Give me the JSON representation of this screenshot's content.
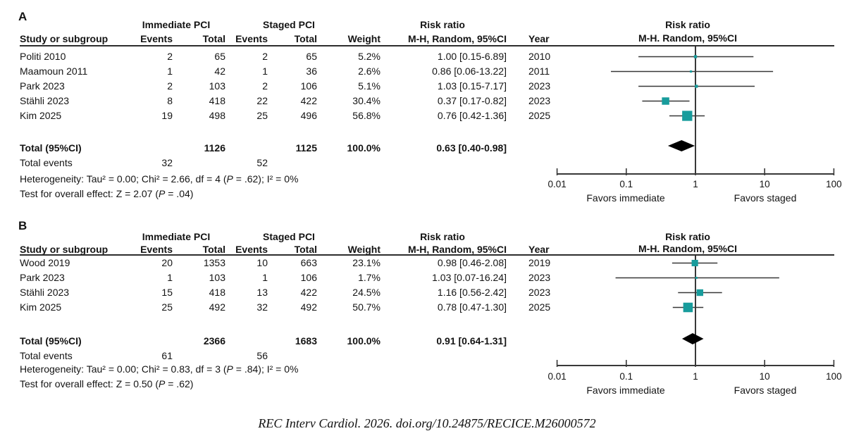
{
  "figure": {
    "footer_citation": "REC Interv Cardiol. 2026. doi.org/10.24875/RECICE.M26000572"
  },
  "colors": {
    "marker": "#189c9c",
    "ci_line": "#383838",
    "diamond": "#000000",
    "rule": "#2d2d2d"
  },
  "panels": [
    {
      "label": "A",
      "group_headers": {
        "immediate": "Immediate PCI",
        "staged": "Staged PCI",
        "risk_ratio": "Risk ratio"
      },
      "col_headers": {
        "study": "Study or subgroup",
        "events1": "Events",
        "total1": "Total",
        "events2": "Events",
        "total2": "Total",
        "weight": "Weight",
        "mh": "M-H, Random, 95%CI",
        "year": "Year"
      },
      "plot_title": {
        "line1": "Risk ratio",
        "line2": "M-H. Random, 95%CI"
      },
      "rows": [
        {
          "study": "Politi 2010",
          "events1": "2",
          "total1": "65",
          "events2": "2",
          "total2": "65",
          "weight": "5.2%",
          "rr_text": "1.00 [0.15-6.89]",
          "year": "2010"
        },
        {
          "study": "Maamoun 2011",
          "events1": "1",
          "total1": "42",
          "events2": "1",
          "total2": "36",
          "weight": "2.6%",
          "rr_text": "0.86 [0.06-13.22]",
          "year": "2011"
        },
        {
          "study": "Park 2023",
          "events1": "2",
          "total1": "103",
          "events2": "2",
          "total2": "106",
          "weight": "5.1%",
          "rr_text": "1.03 [0.15-7.17]",
          "year": "2023"
        },
        {
          "study": "Stähli 2023",
          "events1": "8",
          "total1": "418",
          "events2": "22",
          "total2": "422",
          "weight": "30.4%",
          "rr_text": "0.37 [0.17-0.82]",
          "year": "2023"
        },
        {
          "study": "Kim 2025",
          "events1": "19",
          "total1": "498",
          "events2": "25",
          "total2": "496",
          "weight": "56.8%",
          "rr_text": "0.76 [0.42-1.36]",
          "year": "2025"
        }
      ],
      "total_row": {
        "label": "Total (95%CI)",
        "total1": "1126",
        "total2": "1125",
        "weight": "100.0%",
        "rr_text": "0.63 [0.40-0.98]"
      },
      "total_events": {
        "label": "Total events",
        "events1": "32",
        "events2": "52"
      },
      "heterogeneity": "Heterogeneity: Tau² = 0.00; Chi² = 2.66, df = 4 (P = .62); I² = 0%",
      "overall_test": "Test for overall effect: Z = 2.07 (P = .04)",
      "axis": {
        "ticks": [
          "0.01",
          "0.1",
          "1",
          "10",
          "100"
        ],
        "favors_left": "Favors immediate",
        "favors_right": "Favors staged"
      }
    },
    {
      "label": "B",
      "group_headers": {
        "immediate": "Immediate PCI",
        "staged": "Staged PCI",
        "risk_ratio": "Risk ratio"
      },
      "col_headers": {
        "study": "Study or subgroup",
        "events1": "Events",
        "total1": "Total",
        "events2": "Events",
        "total2": "Total",
        "weight": "Weight",
        "mh": "M-H, Random, 95%CI",
        "year": "Year"
      },
      "plot_title": {
        "line1": "Risk ratio",
        "line2": "M-H. Random, 95%CI"
      },
      "rows": [
        {
          "study": "Wood 2019",
          "events1": "20",
          "total1": "1353",
          "events2": "10",
          "total2": "663",
          "weight": "23.1%",
          "rr_text": "0.98 [0.46-2.08]",
          "year": "2019"
        },
        {
          "study": "Park 2023",
          "events1": "1",
          "total1": "103",
          "events2": "1",
          "total2": "106",
          "weight": "1.7%",
          "rr_text": "1.03 [0.07-16.24]",
          "year": "2023"
        },
        {
          "study": "Stähli 2023",
          "events1": "15",
          "total1": "418",
          "events2": "13",
          "total2": "422",
          "weight": "24.5%",
          "rr_text": "1.16 [0.56-2.42]",
          "year": "2023"
        },
        {
          "study": "Kim 2025",
          "events1": "25",
          "total1": "492",
          "events2": "32",
          "total2": "492",
          "weight": "50.7%",
          "rr_text": "0.78 [0.47-1.30]",
          "year": "2025"
        }
      ],
      "total_row": {
        "label": "Total (95%CI)",
        "total1": "2366",
        "total2": "1683",
        "weight": "100.0%",
        "rr_text": "0.91 [0.64-1.31]"
      },
      "total_events": {
        "label": "Total events",
        "events1": "61",
        "events2": "56"
      },
      "heterogeneity": "Heterogeneity: Tau² = 0.00; Chi² = 0.83, df = 3 (P = .84); I² = 0%",
      "overall_test": "Test for overall effect: Z = 0.50 (P = .62)",
      "axis": {
        "ticks": [
          "0.01",
          "0.1",
          "1",
          "10",
          "100"
        ],
        "favors_left": "Favors immediate",
        "favors_right": "Favors staged"
      }
    }
  ],
  "chart_data": [
    {
      "type": "forest",
      "title": "Risk ratio",
      "subtitle": "M-H. Random, 95%CI",
      "x_scale": "log",
      "x_ticks": [
        0.01,
        0.1,
        1,
        10,
        100
      ],
      "x_range": [
        0.01,
        100
      ],
      "favors_left": "Favors immediate",
      "favors_right": "Favors staged",
      "studies": [
        {
          "name": "Politi 2010",
          "year": 2010,
          "rr": 1.0,
          "ci_low": 0.15,
          "ci_high": 6.89,
          "weight_pct": 5.2
        },
        {
          "name": "Maamoun 2011",
          "year": 2011,
          "rr": 0.86,
          "ci_low": 0.06,
          "ci_high": 13.22,
          "weight_pct": 2.6
        },
        {
          "name": "Park 2023",
          "year": 2023,
          "rr": 1.03,
          "ci_low": 0.15,
          "ci_high": 7.17,
          "weight_pct": 5.1
        },
        {
          "name": "Stähli 2023",
          "year": 2023,
          "rr": 0.37,
          "ci_low": 0.17,
          "ci_high": 0.82,
          "weight_pct": 30.4
        },
        {
          "name": "Kim 2025",
          "year": 2025,
          "rr": 0.76,
          "ci_low": 0.42,
          "ci_high": 1.36,
          "weight_pct": 56.8
        }
      ],
      "pooled": {
        "rr": 0.63,
        "ci_low": 0.4,
        "ci_high": 0.98
      }
    },
    {
      "type": "forest",
      "title": "Risk ratio",
      "subtitle": "M-H. Random, 95%CI",
      "x_scale": "log",
      "x_ticks": [
        0.01,
        0.1,
        1,
        10,
        100
      ],
      "x_range": [
        0.01,
        100
      ],
      "favors_left": "Favors immediate",
      "favors_right": "Favors staged",
      "studies": [
        {
          "name": "Wood 2019",
          "year": 2019,
          "rr": 0.98,
          "ci_low": 0.46,
          "ci_high": 2.08,
          "weight_pct": 23.1
        },
        {
          "name": "Park 2023",
          "year": 2023,
          "rr": 1.03,
          "ci_low": 0.07,
          "ci_high": 16.24,
          "weight_pct": 1.7
        },
        {
          "name": "Stähli 2023",
          "year": 2023,
          "rr": 1.16,
          "ci_low": 0.56,
          "ci_high": 2.42,
          "weight_pct": 24.5
        },
        {
          "name": "Kim 2025",
          "year": 2025,
          "rr": 0.78,
          "ci_low": 0.47,
          "ci_high": 1.3,
          "weight_pct": 50.7
        }
      ],
      "pooled": {
        "rr": 0.91,
        "ci_low": 0.64,
        "ci_high": 1.31
      }
    }
  ]
}
